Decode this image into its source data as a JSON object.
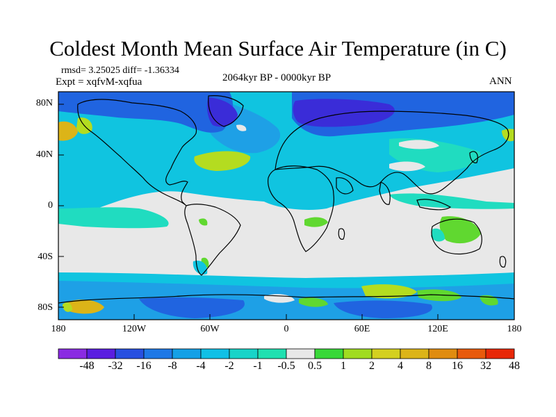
{
  "title": "Coldest Month Mean Surface Air Temperature (in C)",
  "stats": "rmsd= 3.25025 diff= -1.36334",
  "experiment": "Expt = xqfvM-xqfua",
  "period": "2064kyr BP - 0000kyr BP",
  "season": "ANN",
  "lat_labels": [
    "80N",
    "40N",
    "0",
    "40S",
    "80S"
  ],
  "lon_labels": [
    "180",
    "120W",
    "60W",
    "0",
    "60E",
    "120E",
    "180"
  ],
  "colorbar": {
    "labels": [
      "-48",
      "-32",
      "-16",
      "-8",
      "-4",
      "-2",
      "-1",
      "-0.5",
      "0.5",
      "1",
      "2",
      "4",
      "8",
      "16",
      "32",
      "48"
    ],
    "colors": [
      "#8a2be2",
      "#5a1ee0",
      "#2850e0",
      "#1e78e6",
      "#14a0e6",
      "#10c0e6",
      "#18d4c8",
      "#20e0b0",
      "#e8e8e8",
      "#38d838",
      "#a0dc20",
      "#d4d020",
      "#dcb418",
      "#e08c10",
      "#e85a0c",
      "#e82808"
    ]
  },
  "map_colors": {
    "background": "#e8e8e8",
    "cool_weak": "#20dcc0",
    "cool_mid": "#10c4e0",
    "cool_strong": "#1ea0e6",
    "cold": "#2064e0",
    "very_cold": "#3a2cd8",
    "warm_weak": "#60d830",
    "warm_mid": "#b4dc20",
    "warm_strong": "#dcb418",
    "hot": "#e87810",
    "coast": "#000000"
  }
}
